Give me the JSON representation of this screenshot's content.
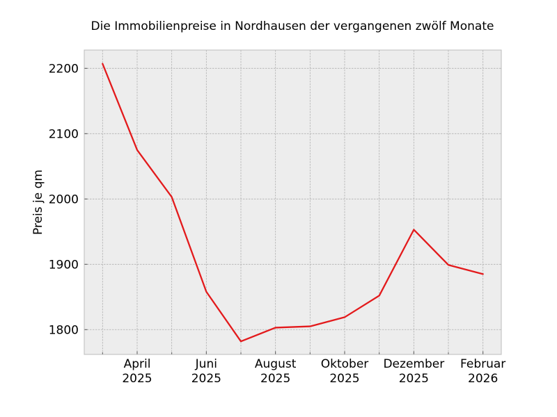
{
  "chart_data": {
    "type": "line",
    "title": "Die Immobilienpreise in Nordhausen der vergangenen zwölf Monate",
    "xlabel": "",
    "ylabel": "Preis je qm",
    "x": [
      "2025-03",
      "2025-04",
      "2025-05",
      "2025-06",
      "2025-07",
      "2025-08",
      "2025-09",
      "2025-10",
      "2025-11",
      "2025-12",
      "2026-01",
      "2026-02"
    ],
    "series": [
      {
        "values": [
          2207,
          2075,
          2003,
          1858,
          1782,
          1803,
          1805,
          1819,
          1852,
          1953,
          1899,
          1885
        ],
        "color": "#e31a1c"
      }
    ],
    "ylim": [
      1762,
      2228
    ],
    "yticks": [
      1800,
      1900,
      2000,
      2100,
      2200
    ],
    "ytick_labels": [
      "1800",
      "1900",
      "2000",
      "2100",
      "2200"
    ],
    "xtick_labels": [
      {
        "month": "April",
        "year": "2025"
      },
      {
        "month": "Juni",
        "year": "2025"
      },
      {
        "month": "August",
        "year": "2025"
      },
      {
        "month": "Oktober",
        "year": "2025"
      },
      {
        "month": "Dezember",
        "year": "2025"
      },
      {
        "month": "Februar",
        "year": "2026"
      }
    ],
    "major_tick_indices": [
      1,
      3,
      5,
      7,
      9,
      11
    ],
    "grid": true,
    "colors": {
      "plot_background": "#ededed",
      "line": "#e31a1c"
    }
  }
}
